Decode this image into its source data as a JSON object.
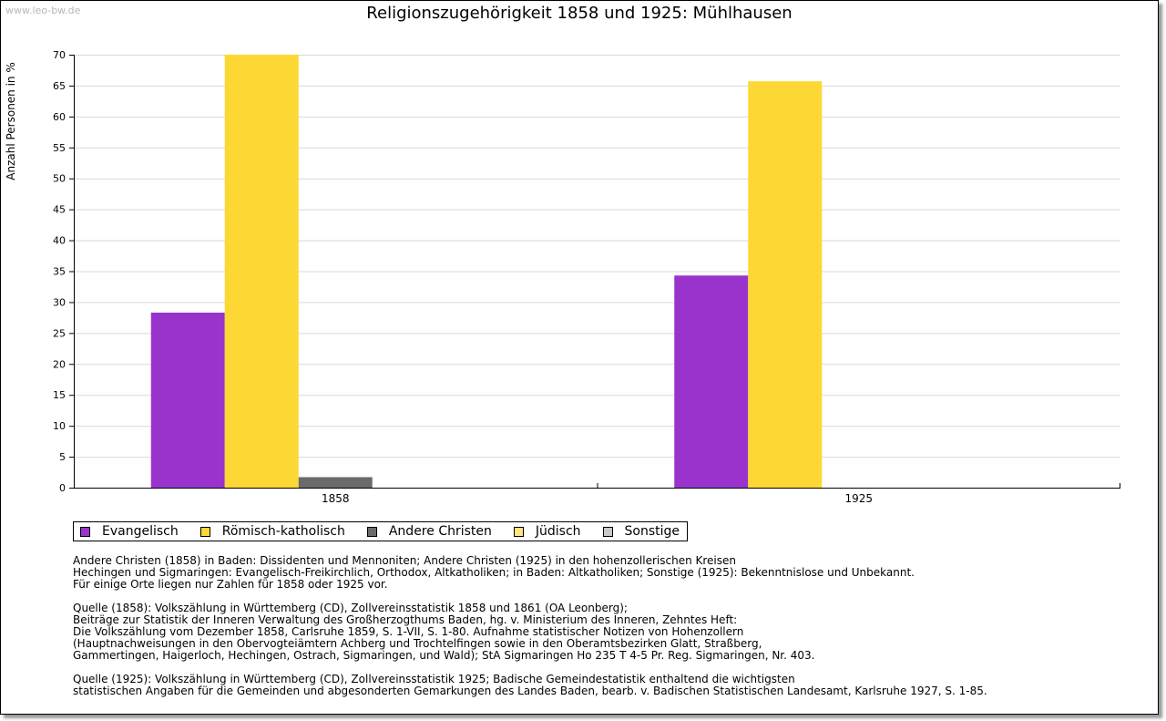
{
  "watermark": "www.leo-bw.de",
  "colors": {
    "evangelisch": "#9933cc",
    "katholisch": "#fdd834",
    "andere": "#6a6a6a",
    "juedisch": "#ffe680",
    "sonstige": "#c8c8c8"
  },
  "chart_data": {
    "type": "bar",
    "title": "Religionszugehörigkeit 1858 und 1925: Mühlhausen",
    "ylabel": "Anzahl Personen in %",
    "xlabel": "",
    "categories": [
      "1858",
      "1925"
    ],
    "ylim": [
      0,
      70
    ],
    "yticks": [
      0,
      5,
      10,
      15,
      20,
      25,
      30,
      35,
      40,
      45,
      50,
      55,
      60,
      65,
      70
    ],
    "grid": true,
    "legend_position": "bottom-left",
    "series": [
      {
        "name": "Evangelisch",
        "color": "#9933cc",
        "values": [
          28.3,
          34.3
        ]
      },
      {
        "name": "Römisch-katholisch",
        "color": "#fdd834",
        "values": [
          70.0,
          65.7
        ]
      },
      {
        "name": "Andere Christen",
        "color": "#6a6a6a",
        "values": [
          1.7,
          0
        ]
      },
      {
        "name": "Jüdisch",
        "color": "#ffe680",
        "values": [
          0,
          0
        ]
      },
      {
        "name": "Sonstige",
        "color": "#c8c8c8",
        "values": [
          0,
          0
        ]
      }
    ]
  },
  "notes": [
    [
      "Andere Christen (1858) in Baden: Dissidenten und Mennoniten; Andere Christen (1925) in den hohenzollerischen Kreisen",
      "Hechingen und Sigmaringen: Evangelisch-Freikirchlich, Orthodox, Altkatholiken; in Baden: Altkatholiken; Sonstige (1925): Bekenntnislose und Unbekannt.",
      "Für einige Orte liegen nur Zahlen für 1858 oder 1925 vor."
    ],
    [
      "Quelle (1858): Volkszählung in Württemberg (CD), Zollvereinsstatistik 1858 und 1861 (OA Leonberg);",
      "Beiträge zur Statistik der Inneren Verwaltung des Großherzogthums Baden, hg. v. Ministerium des Inneren, Zehntes Heft:",
      "Die Volkszählung vom Dezember 1858, Carlsruhe 1859, S. 1-VII, S. 1-80. Aufnahme statistischer Notizen von Hohenzollern",
      "(Hauptnachweisungen in den Obervogteiämtern Achberg und Trochtelfingen sowie in den Oberamtsbezirken Glatt, Straßberg,",
      "Gammertingen, Haigerloch, Hechingen, Ostrach, Sigmaringen, und Wald); StA Sigmaringen Ho 235 T 4-5 Pr. Reg. Sigmaringen, Nr. 403."
    ],
    [
      "Quelle (1925): Volkszählung in Württemberg (CD), Zollvereinsstatistik 1925; Badische Gemeindestatistik enthaltend die wichtigsten",
      "statistischen Angaben für die Gemeinden und abgesonderten Gemarkungen des Landes Baden, bearb. v. Badischen Statistischen Landesamt, Karlsruhe 1927, S. 1-85."
    ]
  ]
}
